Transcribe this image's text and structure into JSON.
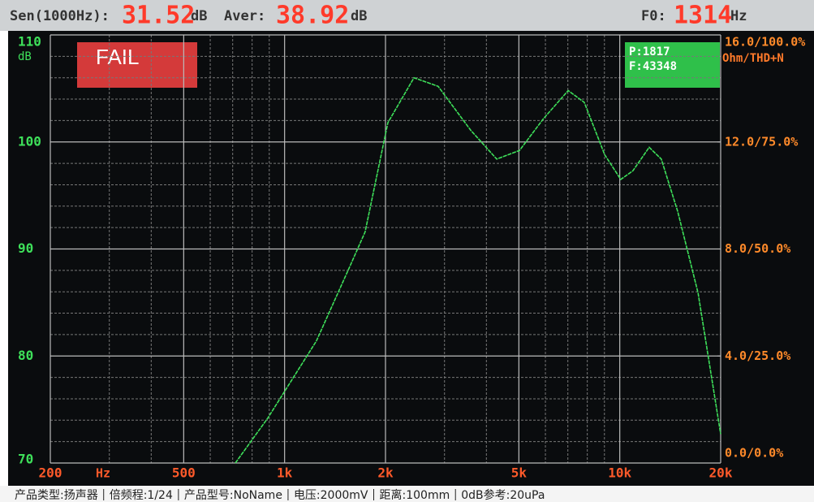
{
  "header": {
    "sen_label": "Sen(1000Hz):",
    "sen_value": "31.52",
    "sen_unit": "dB",
    "aver_label": "Aver:",
    "aver_value": "38.92",
    "aver_unit": "dB",
    "f0_label": "F0:",
    "f0_value": "1314",
    "f0_unit": "Hz"
  },
  "status_badge": "FAIL",
  "counter": {
    "p": "P:1817",
    "f": "F:43348"
  },
  "chart_data": {
    "type": "line",
    "log_x": true,
    "grid": true,
    "ylabel": "dB",
    "xlabel": "Hz",
    "y2label": "Ohm/THD+N",
    "xlim": [
      200,
      20000
    ],
    "xticks": [
      200,
      500,
      {
        "value": 1000,
        "label": "1k"
      },
      {
        "value": 2000,
        "label": "2k"
      },
      {
        "value": 5000,
        "label": "5k"
      },
      {
        "value": 10000,
        "label": "10k"
      },
      {
        "value": 20000,
        "label": "20k"
      }
    ],
    "x_minor_ticks": [
      300,
      400,
      600,
      700,
      800,
      900,
      3000,
      4000,
      6000,
      7000,
      8000,
      9000
    ],
    "ylim": [
      70,
      110
    ],
    "yticks": [
      70,
      80,
      90,
      100,
      110
    ],
    "y_minor_ticks": [
      72,
      74,
      76,
      78,
      82,
      84,
      86,
      88,
      92,
      94,
      96,
      98,
      102,
      104,
      106,
      108
    ],
    "y2lim": [
      0,
      16
    ],
    "y2ticks": [
      {
        "value": 0,
        "label": "0.0/0.0%"
      },
      {
        "value": 4,
        "label": "4.0/25.0%"
      },
      {
        "value": 8,
        "label": "8.0/50.0%"
      },
      {
        "value": 12,
        "label": "12.0/75.0%"
      },
      {
        "value": 16,
        "label": "16.0/100.0%"
      }
    ],
    "x": [
      713,
      891,
      1244,
      1557,
      1739,
      2033,
      2432,
      2871,
      3590,
      4294,
      5020,
      5929,
      7016,
      7835,
      9017,
      10070,
      10940,
      12240,
      13300,
      14890,
      17120,
      20000
    ],
    "series": [
      {
        "color": "#3ee05a",
        "values": [
          70,
          74.2,
          81.4,
          88.2,
          91.6,
          101.8,
          106,
          105.2,
          101.1,
          98.4,
          99.2,
          102.2,
          104.8,
          103.7,
          98.8,
          96.5,
          97.3,
          99.5,
          98.4,
          93.5,
          85.9,
          72.7
        ]
      }
    ]
  },
  "status_bar": [
    "产品类型:扬声器",
    "倍频程:1/24",
    "产品型号:NoName",
    "电压:2000mV",
    "距离:100mm",
    "0dB参考:20uPa"
  ]
}
